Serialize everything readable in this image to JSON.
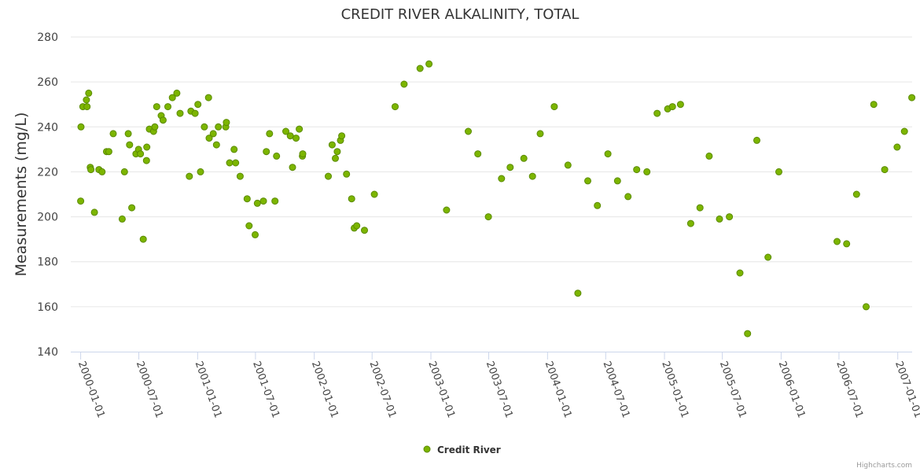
{
  "chart_data": {
    "type": "scatter",
    "title": "CREDIT RIVER ALKALINITY, TOTAL",
    "xlabel": "",
    "ylabel": "Measurements (mg/L)",
    "ylim": [
      140,
      280
    ],
    "y_ticks": [
      "140",
      "160",
      "180",
      "200",
      "220",
      "240",
      "260",
      "280"
    ],
    "xlim": [
      "1999-12-01",
      "2007-02-15"
    ],
    "x_ticks": [
      "2000-01-01",
      "2000-07-01",
      "2001-01-01",
      "2001-07-01",
      "2002-01-01",
      "2002-07-01",
      "2003-01-01",
      "2003-07-01",
      "2004-01-01",
      "2004-07-01",
      "2005-01-01",
      "2005-07-01",
      "2006-01-01",
      "2006-07-01",
      "2007-01-01"
    ],
    "grid": true,
    "legend_position": "bottom-center",
    "series": [
      {
        "name": "Credit River",
        "color": "#7cb500",
        "points": [
          [
            "2000-01-01",
            207
          ],
          [
            "2000-01-02",
            240
          ],
          [
            "2000-01-08",
            249
          ],
          [
            "2000-01-19",
            252
          ],
          [
            "2000-01-21",
            249
          ],
          [
            "2000-01-26",
            255
          ],
          [
            "2000-01-31",
            222
          ],
          [
            "2000-02-02",
            221
          ],
          [
            "2000-02-13",
            202
          ],
          [
            "2000-02-27",
            221
          ],
          [
            "2000-03-08",
            220
          ],
          [
            "2000-03-22",
            229
          ],
          [
            "2000-03-29",
            229
          ],
          [
            "2000-04-12",
            237
          ],
          [
            "2000-05-10",
            199
          ],
          [
            "2000-05-17",
            220
          ],
          [
            "2000-05-29",
            237
          ],
          [
            "2000-06-02",
            232
          ],
          [
            "2000-06-09",
            204
          ],
          [
            "2000-06-22",
            228
          ],
          [
            "2000-06-30",
            230
          ],
          [
            "2000-07-06",
            228
          ],
          [
            "2000-07-15",
            190
          ],
          [
            "2000-07-25",
            225
          ],
          [
            "2000-07-26",
            231
          ],
          [
            "2000-08-03",
            239
          ],
          [
            "2000-08-16",
            238
          ],
          [
            "2000-08-20",
            240
          ],
          [
            "2000-08-26",
            249
          ],
          [
            "2000-09-09",
            245
          ],
          [
            "2000-09-15",
            243
          ],
          [
            "2000-09-30",
            249
          ],
          [
            "2000-10-14",
            253
          ],
          [
            "2000-10-28",
            255
          ],
          [
            "2000-11-07",
            246
          ],
          [
            "2000-12-06",
            218
          ],
          [
            "2000-12-11",
            247
          ],
          [
            "2000-12-24",
            246
          ],
          [
            "2001-01-02",
            250
          ],
          [
            "2001-01-10",
            220
          ],
          [
            "2001-01-22",
            240
          ],
          [
            "2001-02-04",
            253
          ],
          [
            "2001-02-06",
            235
          ],
          [
            "2001-02-19",
            237
          ],
          [
            "2001-03-01",
            232
          ],
          [
            "2001-03-07",
            240
          ],
          [
            "2001-03-30",
            240
          ],
          [
            "2001-04-01",
            242
          ],
          [
            "2001-04-11",
            224
          ],
          [
            "2001-04-25",
            230
          ],
          [
            "2001-04-30",
            224
          ],
          [
            "2001-05-14",
            218
          ],
          [
            "2001-06-05",
            208
          ],
          [
            "2001-06-11",
            196
          ],
          [
            "2001-06-30",
            192
          ],
          [
            "2001-07-07",
            206
          ],
          [
            "2001-07-26",
            207
          ],
          [
            "2001-08-04",
            229
          ],
          [
            "2001-08-14",
            237
          ],
          [
            "2001-08-31",
            207
          ],
          [
            "2001-09-05",
            227
          ],
          [
            "2001-10-04",
            238
          ],
          [
            "2001-10-18",
            236
          ],
          [
            "2001-10-25",
            222
          ],
          [
            "2001-11-05",
            235
          ],
          [
            "2001-11-15",
            239
          ],
          [
            "2001-11-25",
            227
          ],
          [
            "2001-11-26",
            228
          ],
          [
            "2002-02-14",
            218
          ],
          [
            "2002-02-26",
            232
          ],
          [
            "2002-03-08",
            226
          ],
          [
            "2002-03-14",
            229
          ],
          [
            "2002-03-24",
            234
          ],
          [
            "2002-03-28",
            236
          ],
          [
            "2002-04-12",
            219
          ],
          [
            "2002-04-28",
            208
          ],
          [
            "2002-05-06",
            195
          ],
          [
            "2002-05-14",
            196
          ],
          [
            "2002-06-07",
            194
          ],
          [
            "2002-07-08",
            210
          ],
          [
            "2002-09-11",
            249
          ],
          [
            "2002-10-09",
            259
          ],
          [
            "2002-11-28",
            266
          ],
          [
            "2002-12-26",
            268
          ],
          [
            "2003-02-19",
            203
          ],
          [
            "2003-04-28",
            238
          ],
          [
            "2003-05-28",
            228
          ],
          [
            "2003-06-30",
            200
          ],
          [
            "2003-08-10",
            217
          ],
          [
            "2003-09-06",
            222
          ],
          [
            "2003-10-19",
            226
          ],
          [
            "2003-11-15",
            218
          ],
          [
            "2003-12-09",
            237
          ],
          [
            "2004-01-22",
            249
          ],
          [
            "2004-03-05",
            223
          ],
          [
            "2004-04-05",
            166
          ],
          [
            "2004-05-06",
            216
          ],
          [
            "2004-06-05",
            205
          ],
          [
            "2004-07-08",
            228
          ],
          [
            "2004-08-07",
            216
          ],
          [
            "2004-09-09",
            209
          ],
          [
            "2004-10-06",
            221
          ],
          [
            "2004-11-07",
            220
          ],
          [
            "2004-12-09",
            246
          ],
          [
            "2005-01-11",
            248
          ],
          [
            "2005-01-26",
            249
          ],
          [
            "2005-02-20",
            250
          ],
          [
            "2005-03-24",
            197
          ],
          [
            "2005-04-22",
            204
          ],
          [
            "2005-05-21",
            227
          ],
          [
            "2005-06-22",
            199
          ],
          [
            "2005-07-23",
            200
          ],
          [
            "2005-08-25",
            175
          ],
          [
            "2005-09-18",
            148
          ],
          [
            "2005-10-17",
            234
          ],
          [
            "2005-11-21",
            182
          ],
          [
            "2005-12-25",
            220
          ],
          [
            "2006-06-25",
            189
          ],
          [
            "2006-07-25",
            188
          ],
          [
            "2006-08-25",
            210
          ],
          [
            "2006-09-24",
            160
          ],
          [
            "2006-10-18",
            250
          ],
          [
            "2006-11-21",
            221
          ],
          [
            "2006-12-30",
            231
          ],
          [
            "2007-01-22",
            238
          ],
          [
            "2007-02-14",
            253
          ]
        ]
      }
    ]
  },
  "credits": "Highcharts.com"
}
